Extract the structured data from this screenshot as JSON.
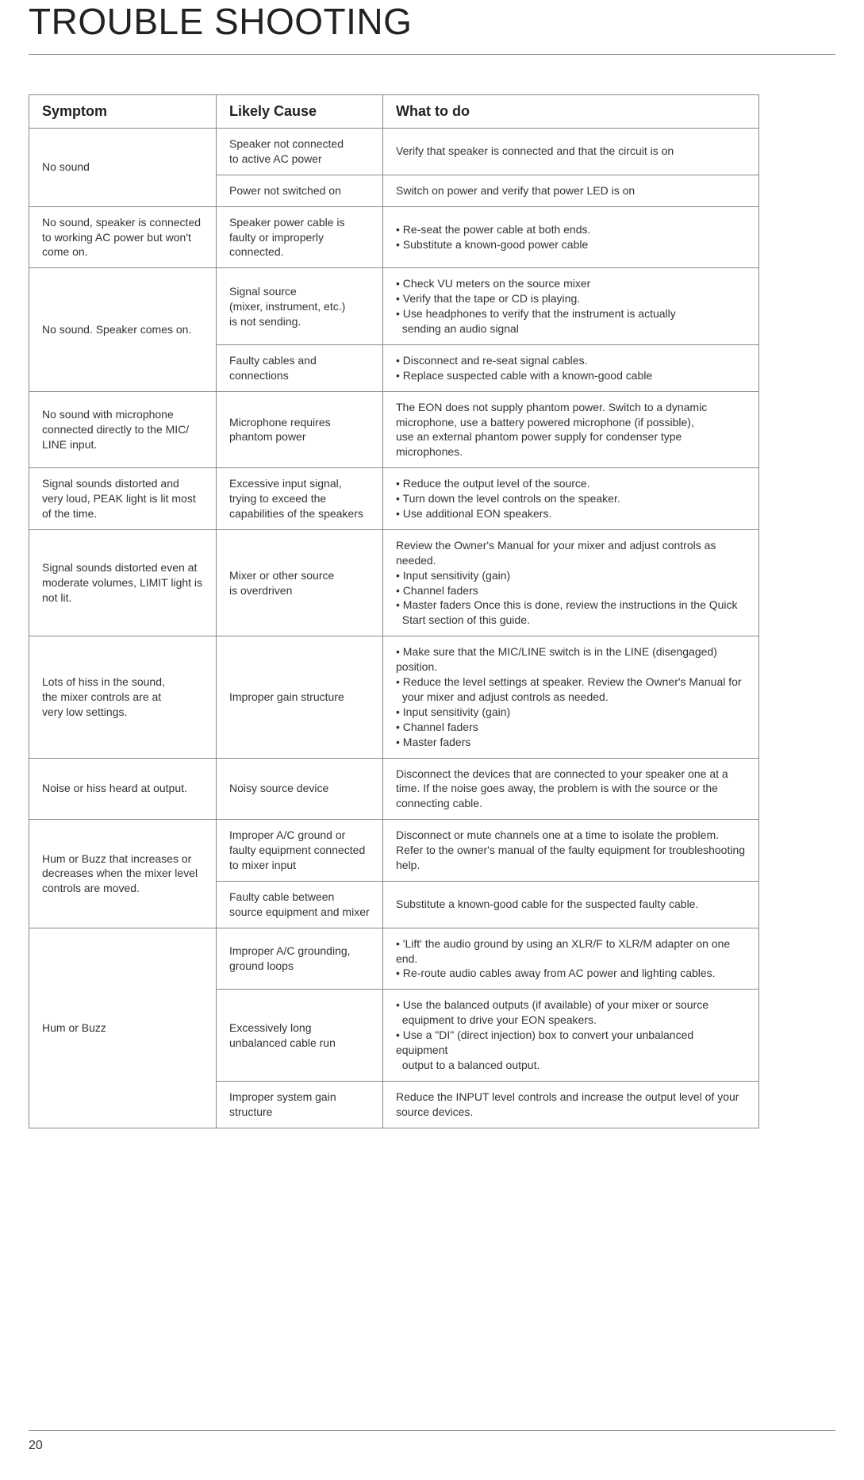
{
  "page": {
    "title": "TROUBLE SHOOTING",
    "number": "20"
  },
  "table": {
    "headers": {
      "symptom": "Symptom",
      "cause": "Likely Cause",
      "what": "What to do"
    },
    "rows": [
      {
        "symptom": "No sound",
        "symptom_rowspan": 2,
        "cause": "Speaker not connected\nto active AC power",
        "what": "Verify that speaker is connected and that the circuit is on"
      },
      {
        "cause": "Power not switched on",
        "what": "Switch on power and verify that power LED is on"
      },
      {
        "symptom": "No sound, speaker is connected to working AC power but won't come on.",
        "cause": "Speaker power cable is faulty or improperly connected.",
        "what": "• Re-seat the power cable at both ends.\n• Substitute a known-good power cable"
      },
      {
        "symptom": "No sound. Speaker comes on.",
        "symptom_rowspan": 2,
        "cause": "Signal source\n(mixer, instrument, etc.)\nis not sending.",
        "what": "• Check VU meters on the source mixer\n• Verify that the tape or CD is playing.\n• Use headphones to verify that the instrument is actually\n  sending an audio signal"
      },
      {
        "cause": "Faulty cables and\nconnections",
        "what": "• Disconnect and re-seat signal cables.\n• Replace suspected cable with a known-good cable"
      },
      {
        "symptom": "No sound with microphone connected directly to the MIC/ LINE input.",
        "cause": "Microphone requires\nphantom power",
        "what": "The EON does not supply phantom power. Switch to a dynamic microphone, use a battery powered microphone (if possible),\nuse an external phantom power supply for condenser type microphones."
      },
      {
        "symptom": "Signal sounds distorted and very loud, PEAK light is lit most of the time.",
        "cause": "Excessive input signal, trying to exceed the capabilities of the speakers",
        "what": "• Reduce the output level of the source.\n• Turn down the level controls on the speaker.\n• Use additional EON speakers."
      },
      {
        "symptom": "Signal sounds distorted even at moderate volumes, LIMIT light is not lit.",
        "cause": "Mixer or other source\nis overdriven",
        "what": "Review the Owner's Manual for your mixer and adjust controls as needed.\n• Input sensitivity (gain)\n• Channel faders\n• Master faders Once this is done, review the instructions in the Quick\n  Start section of this guide."
      },
      {
        "symptom": "Lots of hiss in the sound,\nthe mixer controls are at\nvery low settings.",
        "cause": "Improper gain structure",
        "what": "• Make sure that the MIC/LINE switch is in the LINE (disengaged) position.\n• Reduce the level settings at speaker. Review the Owner's Manual for\n  your mixer and adjust controls as needed.\n• Input sensitivity (gain)\n• Channel faders\n• Master faders"
      },
      {
        "symptom": "Noise or hiss heard at output.",
        "cause": "Noisy source device",
        "what": "Disconnect the devices that are connected to your speaker one at a time. If the noise goes away, the problem is with the source or the connecting cable."
      },
      {
        "symptom": "Hum or Buzz that increases or decreases when the mixer level controls are moved.",
        "symptom_rowspan": 2,
        "cause": "Improper A/C ground or\nfaulty equipment connected\nto mixer input",
        "what": "Disconnect or mute channels one at a time to isolate the problem. Refer to the owner's manual of the faulty equipment for troubleshooting help."
      },
      {
        "cause": "Faulty cable between source equipment and mixer",
        "what": "Substitute a known-good cable for the suspected faulty cable."
      },
      {
        "symptom": "Hum or Buzz",
        "symptom_rowspan": 3,
        "cause": "Improper A/C grounding,\nground loops",
        "what": "• 'Lift' the audio ground by using an XLR/F to XLR/M adapter on one end.\n• Re-route audio cables away from AC power and lighting cables."
      },
      {
        "cause": "Excessively long\nunbalanced cable run",
        "what": "• Use the balanced outputs (if available) of your mixer or source\n  equipment to drive your EON speakers.\n• Use a \"DI\" (direct injection) box to convert your unbalanced equipment\n  output to a balanced output."
      },
      {
        "cause": "Improper system gain\nstructure",
        "what": "Reduce the INPUT level controls and increase the output level of your source devices."
      }
    ]
  }
}
